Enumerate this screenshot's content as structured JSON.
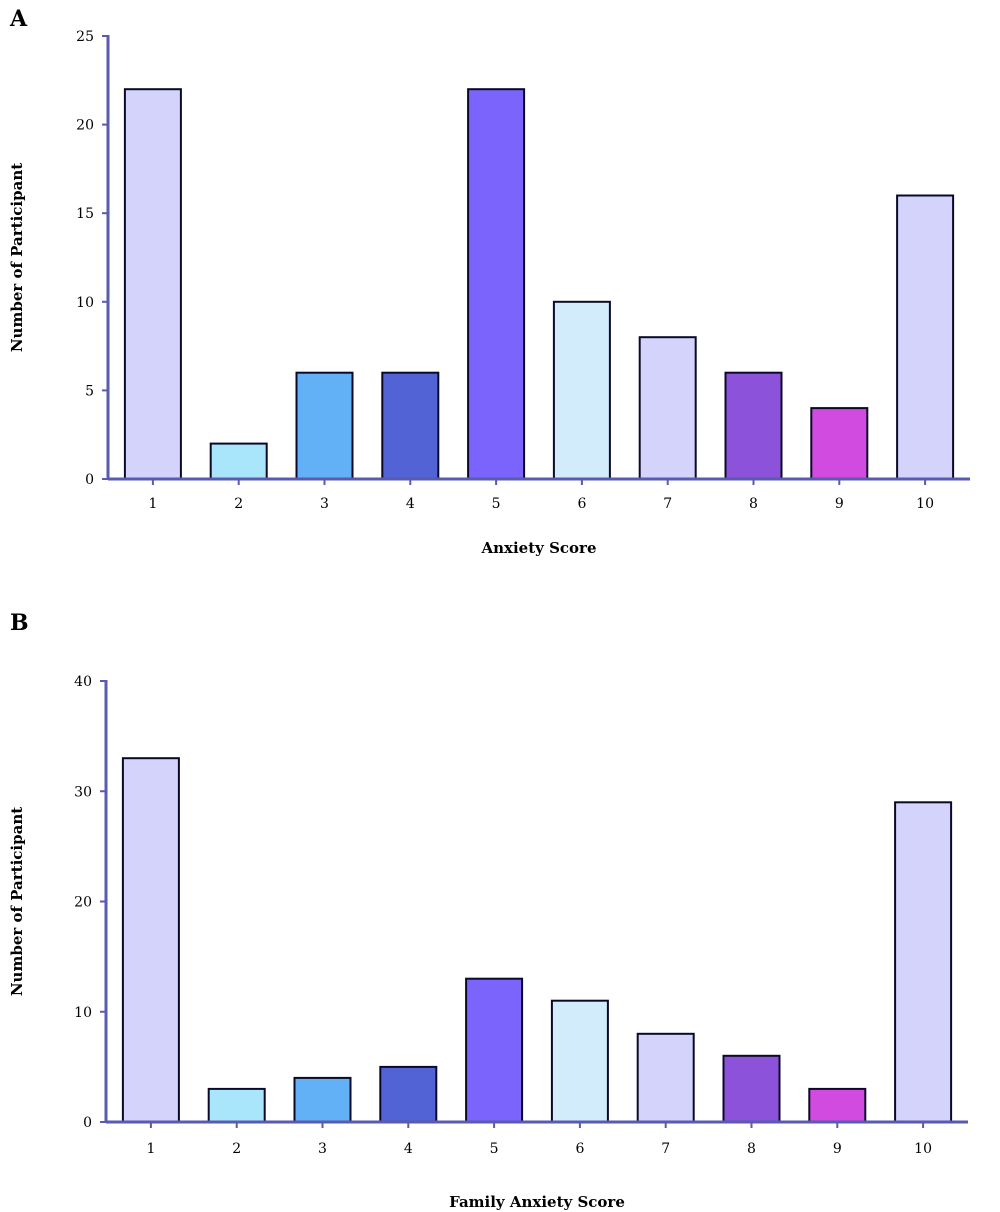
{
  "colors": [
    "#d3d3fb",
    "#a9e5fb",
    "#62b0f6",
    "#5163d5",
    "#7b64fb",
    "#d2ecfc",
    "#d3d3fb",
    "#8c52da",
    "#d14be0",
    "#d3d3fb"
  ],
  "chart_data": [
    {
      "type": "bar",
      "panel": "A",
      "categories": [
        "1",
        "2",
        "3",
        "4",
        "5",
        "6",
        "7",
        "8",
        "9",
        "10"
      ],
      "values": [
        22,
        2,
        6,
        6,
        22,
        10,
        8,
        6,
        4,
        16
      ],
      "xlabel": "Anxiety Score",
      "ylabel": "Number of Participant",
      "ylim": [
        0,
        25
      ],
      "yticks": [
        0,
        5,
        10,
        15,
        20,
        25
      ],
      "grid": false
    },
    {
      "type": "bar",
      "panel": "B",
      "categories": [
        "1",
        "2",
        "3",
        "4",
        "5",
        "6",
        "7",
        "8",
        "9",
        "10"
      ],
      "values": [
        33,
        3,
        4,
        5,
        13,
        11,
        8,
        6,
        3,
        29
      ],
      "xlabel": "Family Anxiety Score",
      "ylabel": "Number of Participant",
      "ylim": [
        0,
        40
      ],
      "yticks": [
        0,
        10,
        20,
        30,
        40
      ],
      "grid": false
    }
  ]
}
